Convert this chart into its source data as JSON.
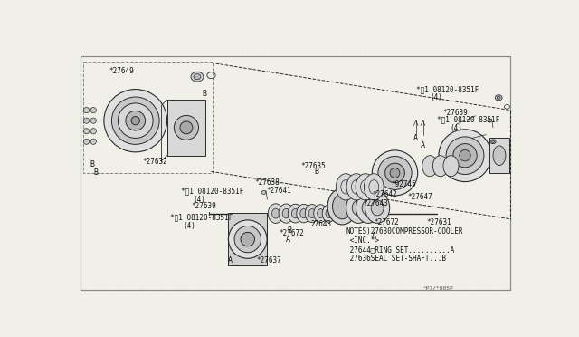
{
  "bg_color": "#f0efe8",
  "line_color": "#2a2a2a",
  "text_color": "#111111",
  "fig_width": 6.4,
  "fig_height": 3.72,
  "dpi": 100,
  "notes_text": [
    "NOTES)27630COMPRESSOR-COOLER",
    " <INC.*>",
    " 27644□RING SET..........A",
    " 27636SEAL SET-SHAFT...B"
  ],
  "footer_text": "^P7/*005P"
}
